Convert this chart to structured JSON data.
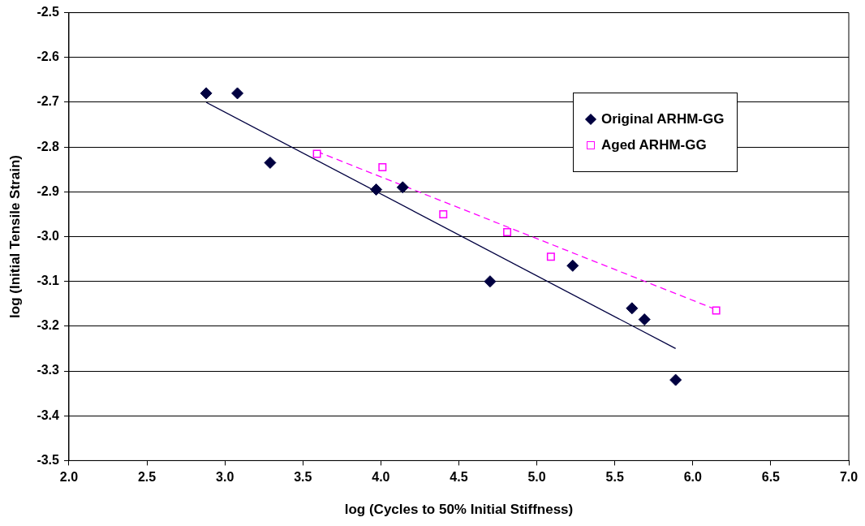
{
  "chart_data": {
    "type": "scatter",
    "xlabel": "log (Cycles to 50% Initial Stiffness)",
    "ylabel": "log (Initial Tensile Strain)",
    "xlim": [
      2.0,
      7.0
    ],
    "xticks": [
      {
        "value": 2,
        "label": "2.0"
      },
      2.5,
      {
        "value": 3,
        "label": "3.0"
      },
      3.5,
      {
        "value": 4,
        "label": "4.0"
      },
      4.5,
      {
        "value": 5,
        "label": "5.0"
      },
      5.5,
      {
        "value": 6,
        "label": "6.0"
      },
      6.5,
      {
        "value": 7,
        "label": "7.0"
      }
    ],
    "ylim": [
      -3.5,
      -2.5
    ],
    "yticks": [
      -3.5,
      -3.4,
      -3.3,
      -3.2,
      -3.1,
      {
        "value": -3,
        "label": "-3.0"
      },
      -2.9,
      -2.8,
      -2.7,
      -2.6,
      -2.5
    ],
    "grid": "y",
    "legend": "top right",
    "series": [
      {
        "name": "Original ARHM-GG",
        "marker": "diamond",
        "color": "#000040",
        "x": [
          2.88,
          3.08,
          3.29,
          3.97,
          4.14,
          4.7,
          5.23,
          5.61,
          5.69,
          5.89
        ],
        "values": [
          -2.68,
          -2.68,
          -2.835,
          -2.895,
          -2.89,
          -3.1,
          -3.065,
          -3.16,
          -3.185,
          -3.32
        ]
      },
      {
        "name": "Aged ARHM-GG",
        "marker": "square",
        "color": "#ff00ff",
        "x": [
          3.59,
          4.01,
          4.4,
          4.81,
          5.09,
          6.15
        ],
        "values": [
          -2.815,
          -2.845,
          -2.95,
          -2.99,
          -3.045,
          -3.165
        ]
      },
      {
        "type": "line",
        "line_style": "solid",
        "color": "#000040",
        "x": [
          2.88,
          5.89
        ],
        "values": [
          -2.7,
          -3.25
        ]
      },
      {
        "type": "line",
        "line_style": "dashed",
        "color": "#ff00ff",
        "x": [
          3.59,
          6.15
        ],
        "values": [
          -2.81,
          -3.163
        ]
      }
    ]
  }
}
